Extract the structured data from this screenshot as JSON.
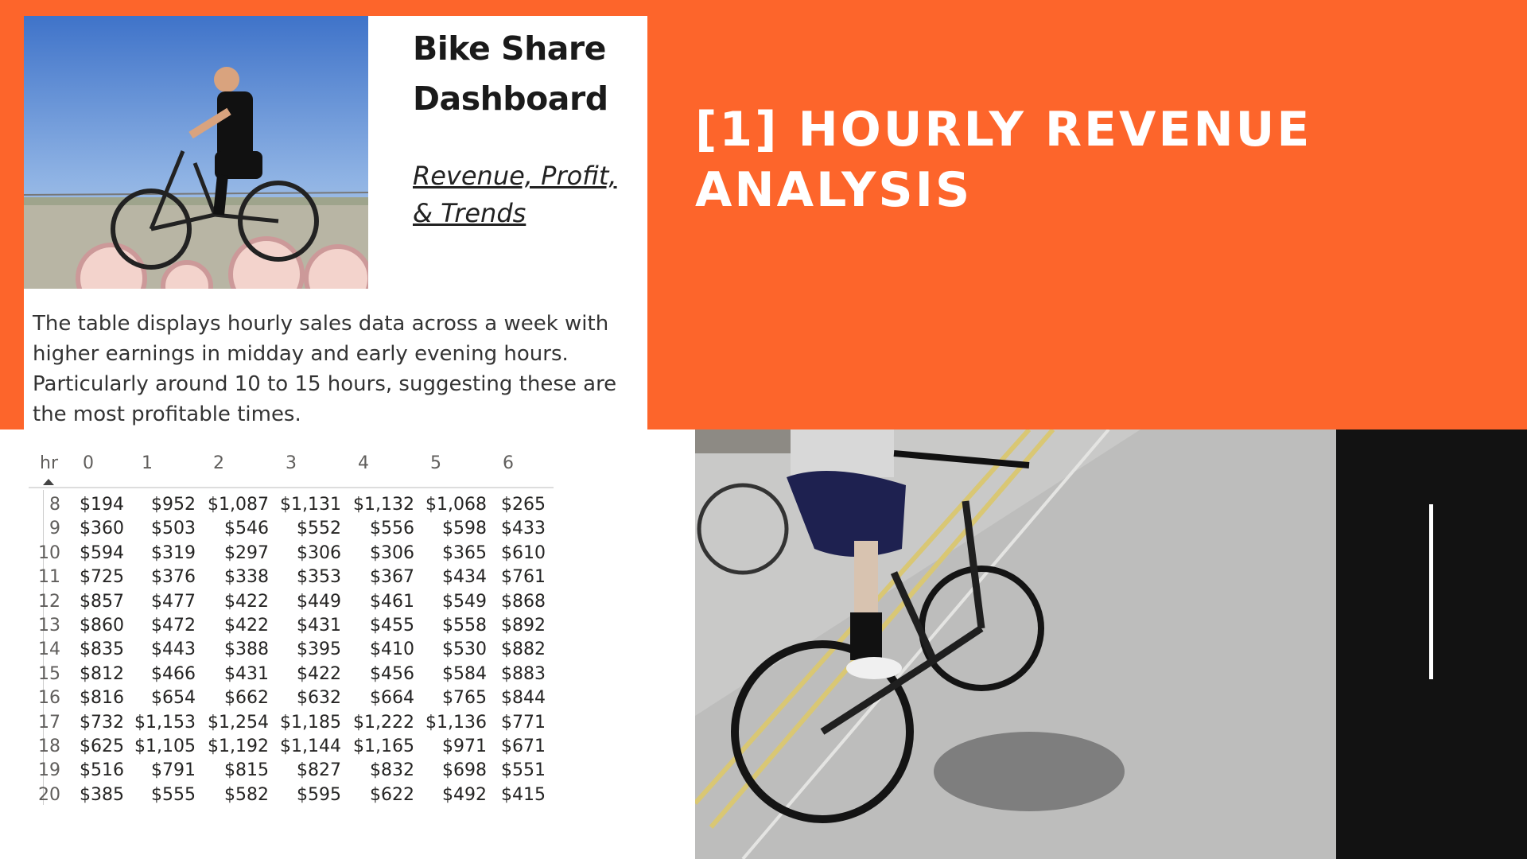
{
  "card": {
    "title_line1": "Bike Share",
    "title_line2": "Dashboard",
    "subtitle_line1": "Revenue, Profit,",
    "subtitle_line2": "& Trends"
  },
  "description": "The table displays hourly sales data across a week with higher earnings in midday and early evening hours. Particularly around 10 to 15 hours, suggesting these are the most profitable times.",
  "headline": {
    "line1": "[1] HOURLY REVENUE",
    "line2": "ANALYSIS"
  },
  "table": {
    "row_header": "hr",
    "columns": [
      "0",
      "1",
      "2",
      "3",
      "4",
      "5",
      "6"
    ],
    "rows": [
      {
        "hr": "8",
        "values": [
          "$194",
          "$952",
          "$1,087",
          "$1,131",
          "$1,132",
          "$1,068",
          "$265"
        ]
      },
      {
        "hr": "9",
        "values": [
          "$360",
          "$503",
          "$546",
          "$552",
          "$556",
          "$598",
          "$433"
        ]
      },
      {
        "hr": "10",
        "values": [
          "$594",
          "$319",
          "$297",
          "$306",
          "$306",
          "$365",
          "$610"
        ]
      },
      {
        "hr": "11",
        "values": [
          "$725",
          "$376",
          "$338",
          "$353",
          "$367",
          "$434",
          "$761"
        ]
      },
      {
        "hr": "12",
        "values": [
          "$857",
          "$477",
          "$422",
          "$449",
          "$461",
          "$549",
          "$868"
        ]
      },
      {
        "hr": "13",
        "values": [
          "$860",
          "$472",
          "$422",
          "$431",
          "$455",
          "$558",
          "$892"
        ]
      },
      {
        "hr": "14",
        "values": [
          "$835",
          "$443",
          "$388",
          "$395",
          "$410",
          "$530",
          "$882"
        ]
      },
      {
        "hr": "15",
        "values": [
          "$812",
          "$466",
          "$431",
          "$422",
          "$456",
          "$584",
          "$883"
        ]
      },
      {
        "hr": "16",
        "values": [
          "$816",
          "$654",
          "$662",
          "$632",
          "$664",
          "$765",
          "$844"
        ]
      },
      {
        "hr": "17",
        "values": [
          "$732",
          "$1,153",
          "$1,254",
          "$1,185",
          "$1,222",
          "$1,136",
          "$771"
        ]
      },
      {
        "hr": "18",
        "values": [
          "$625",
          "$1,105",
          "$1,192",
          "$1,144",
          "$1,165",
          "$971",
          "$671"
        ]
      },
      {
        "hr": "19",
        "values": [
          "$516",
          "$791",
          "$815",
          "$827",
          "$832",
          "$698",
          "$551"
        ]
      },
      {
        "hr": "20",
        "values": [
          "$385",
          "$555",
          "$582",
          "$595",
          "$622",
          "$492",
          "$415"
        ]
      }
    ]
  },
  "colors": {
    "accent": "#FD652B",
    "dark_panel": "#121212"
  }
}
